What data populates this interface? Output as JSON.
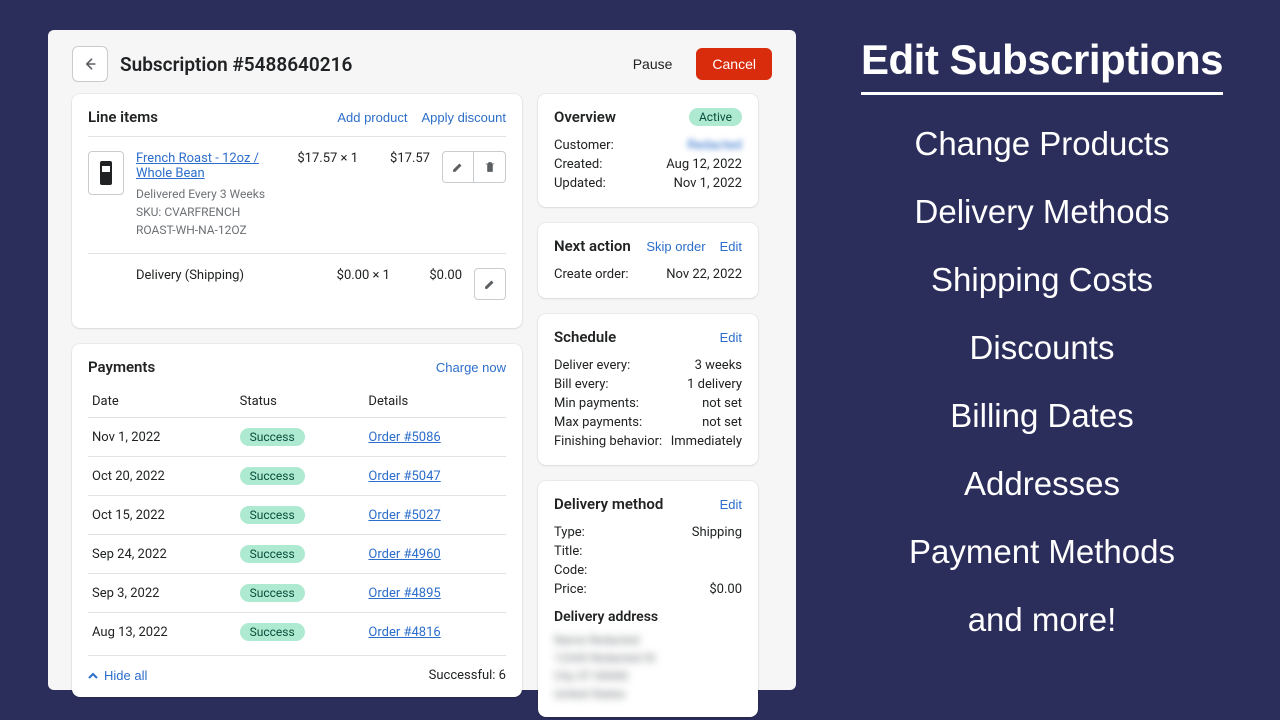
{
  "header": {
    "title": "Subscription #5488640216",
    "pause": "Pause",
    "cancel": "Cancel"
  },
  "lineItems": {
    "title": "Line items",
    "addProduct": "Add product",
    "applyDiscount": "Apply discount",
    "product": {
      "name": "French Roast - 12oz / Whole Bean",
      "cadence": "Delivered Every 3 Weeks",
      "sku": "SKU: CVARFRENCH ROAST-WH-NA-12OZ",
      "unit": "$17.57 × 1",
      "total": "$17.57"
    },
    "shipping": {
      "label": "Delivery (Shipping)",
      "unit": "$0.00 × 1",
      "total": "$0.00"
    }
  },
  "payments": {
    "title": "Payments",
    "chargeNow": "Charge now",
    "cols": {
      "date": "Date",
      "status": "Status",
      "details": "Details"
    },
    "rows": [
      {
        "date": "Nov 1, 2022",
        "status": "Success",
        "order": "Order #5086"
      },
      {
        "date": "Oct 20, 2022",
        "status": "Success",
        "order": "Order #5047"
      },
      {
        "date": "Oct 15, 2022",
        "status": "Success",
        "order": "Order #5027"
      },
      {
        "date": "Sep 24, 2022",
        "status": "Success",
        "order": "Order #4960"
      },
      {
        "date": "Sep 3, 2022",
        "status": "Success",
        "order": "Order #4895"
      },
      {
        "date": "Aug 13, 2022",
        "status": "Success",
        "order": "Order #4816"
      }
    ],
    "hideAll": "Hide all",
    "successful": "Successful: 6"
  },
  "overview": {
    "title": "Overview",
    "badge": "Active",
    "customerLabel": "Customer:",
    "customerValue": "Redacted",
    "createdLabel": "Created:",
    "createdValue": "Aug 12, 2022",
    "updatedLabel": "Updated:",
    "updatedValue": "Nov 1, 2022"
  },
  "nextAction": {
    "title": "Next action",
    "skip": "Skip order",
    "edit": "Edit",
    "createLabel": "Create order:",
    "createValue": "Nov 22, 2022"
  },
  "schedule": {
    "title": "Schedule",
    "edit": "Edit",
    "rows": [
      {
        "k": "Deliver every:",
        "v": "3 weeks"
      },
      {
        "k": "Bill every:",
        "v": "1 delivery"
      },
      {
        "k": "Min payments:",
        "v": "not set"
      },
      {
        "k": "Max payments:",
        "v": "not set"
      },
      {
        "k": "Finishing behavior:",
        "v": "Immediately"
      }
    ]
  },
  "delivery": {
    "title": "Delivery method",
    "edit": "Edit",
    "rows": [
      {
        "k": "Type:",
        "v": "Shipping"
      },
      {
        "k": "Title:",
        "v": ""
      },
      {
        "k": "Code:",
        "v": ""
      },
      {
        "k": "Price:",
        "v": "$0.00"
      }
    ],
    "addressTitle": "Delivery address",
    "addressBlur": "Name Redacted\n12345 Redacted St\nCity ST 00000\nUnited States"
  },
  "promo": {
    "heading": "Edit Subscriptions",
    "items": [
      "Change Products",
      "Delivery Methods",
      "Shipping Costs",
      "Discounts",
      "Billing Dates",
      "Addresses",
      "Payment Methods",
      "and more!"
    ]
  }
}
